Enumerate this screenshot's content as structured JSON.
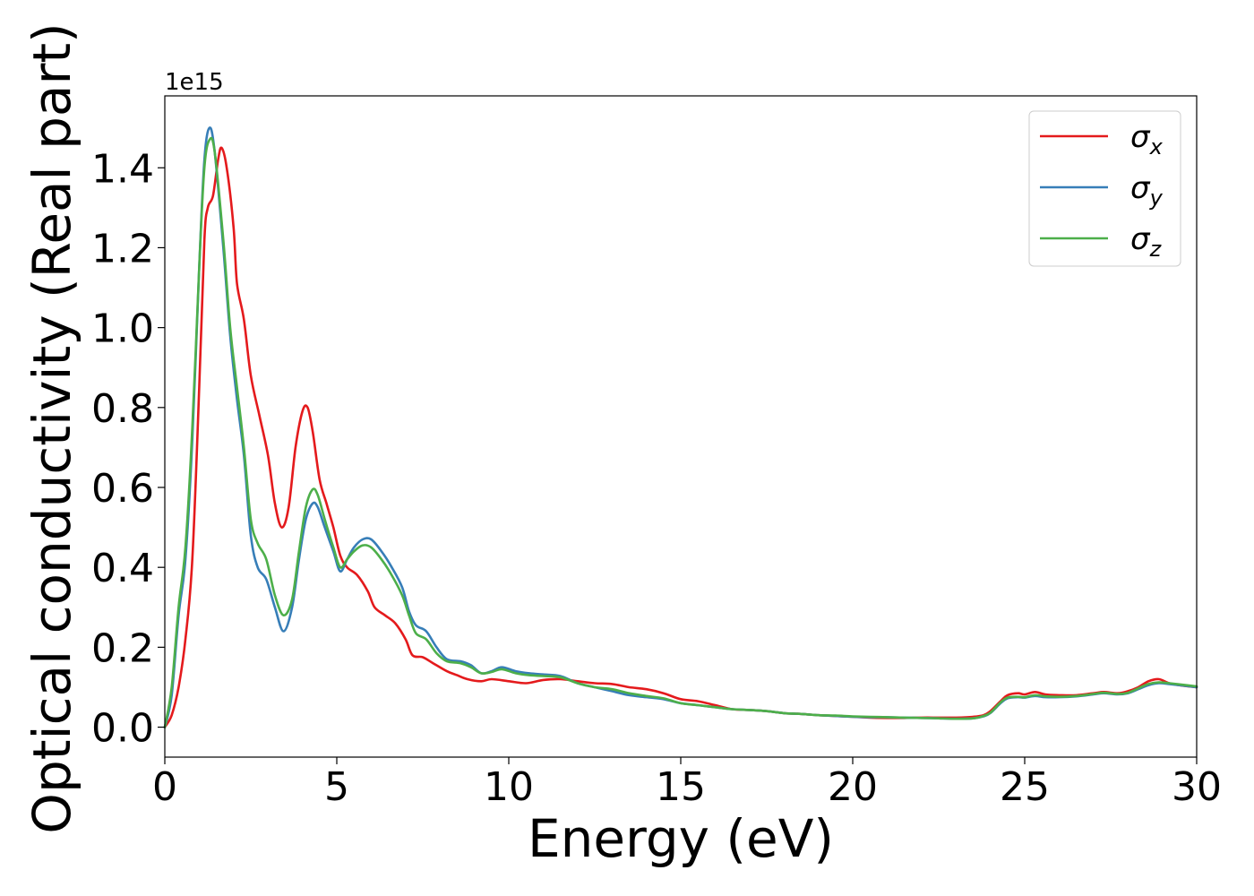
{
  "chart_data": {
    "type": "line",
    "title": "",
    "xlabel": "Energy (eV)",
    "ylabel": "Optical conductivity (Real part)",
    "offset_label": "1e15",
    "xlim": [
      0,
      30
    ],
    "ylim": [
      -0.075,
      1.58
    ],
    "xticks": [
      0,
      5,
      10,
      15,
      20,
      25,
      30
    ],
    "yticks": [
      0.0,
      0.2,
      0.4,
      0.6,
      0.8,
      1.0,
      1.2,
      1.4
    ],
    "xtick_labels": [
      "0",
      "5",
      "10",
      "15",
      "20",
      "25",
      "30"
    ],
    "ytick_labels": [
      "0.0",
      "0.2",
      "0.4",
      "0.6",
      "0.8",
      "1.0",
      "1.2",
      "1.4"
    ],
    "grid": false,
    "legend_position": "top-right",
    "series": [
      {
        "name": "σx",
        "legend_main": "σ",
        "legend_sub": "x",
        "color": "#e41a1c",
        "points": [
          [
            0,
            0.0
          ],
          [
            0.2,
            0.03
          ],
          [
            0.4,
            0.1
          ],
          [
            0.6,
            0.22
          ],
          [
            0.8,
            0.42
          ],
          [
            1.0,
            0.85
          ],
          [
            1.15,
            1.22
          ],
          [
            1.25,
            1.3
          ],
          [
            1.4,
            1.33
          ],
          [
            1.55,
            1.42
          ],
          [
            1.65,
            1.45
          ],
          [
            1.8,
            1.4
          ],
          [
            2.0,
            1.25
          ],
          [
            2.1,
            1.11
          ],
          [
            2.3,
            1.02
          ],
          [
            2.5,
            0.88
          ],
          [
            2.75,
            0.78
          ],
          [
            3.0,
            0.68
          ],
          [
            3.2,
            0.56
          ],
          [
            3.4,
            0.5
          ],
          [
            3.6,
            0.55
          ],
          [
            3.8,
            0.7
          ],
          [
            4.0,
            0.79
          ],
          [
            4.15,
            0.8
          ],
          [
            4.3,
            0.74
          ],
          [
            4.5,
            0.62
          ],
          [
            4.7,
            0.56
          ],
          [
            4.9,
            0.5
          ],
          [
            5.1,
            0.43
          ],
          [
            5.3,
            0.4
          ],
          [
            5.6,
            0.38
          ],
          [
            5.9,
            0.34
          ],
          [
            6.1,
            0.3
          ],
          [
            6.4,
            0.28
          ],
          [
            6.7,
            0.26
          ],
          [
            7.0,
            0.22
          ],
          [
            7.2,
            0.18
          ],
          [
            7.5,
            0.175
          ],
          [
            7.8,
            0.16
          ],
          [
            8.2,
            0.14
          ],
          [
            8.5,
            0.13
          ],
          [
            8.8,
            0.12
          ],
          [
            9.2,
            0.115
          ],
          [
            9.5,
            0.12
          ],
          [
            10.0,
            0.115
          ],
          [
            10.5,
            0.11
          ],
          [
            11.0,
            0.118
          ],
          [
            11.5,
            0.12
          ],
          [
            12.0,
            0.115
          ],
          [
            12.5,
            0.11
          ],
          [
            13.0,
            0.108
          ],
          [
            13.5,
            0.1
          ],
          [
            14.0,
            0.095
          ],
          [
            14.5,
            0.085
          ],
          [
            15.0,
            0.07
          ],
          [
            15.5,
            0.065
          ],
          [
            16.0,
            0.055
          ],
          [
            16.5,
            0.045
          ],
          [
            17.0,
            0.043
          ],
          [
            17.5,
            0.04
          ],
          [
            18.0,
            0.035
          ],
          [
            18.5,
            0.033
          ],
          [
            19.0,
            0.03
          ],
          [
            19.5,
            0.028
          ],
          [
            20.0,
            0.026
          ],
          [
            20.5,
            0.024
          ],
          [
            21.0,
            0.023
          ],
          [
            21.5,
            0.023
          ],
          [
            22.0,
            0.024
          ],
          [
            22.5,
            0.024
          ],
          [
            23.0,
            0.024
          ],
          [
            23.5,
            0.026
          ],
          [
            23.8,
            0.03
          ],
          [
            24.0,
            0.04
          ],
          [
            24.3,
            0.065
          ],
          [
            24.5,
            0.08
          ],
          [
            24.8,
            0.085
          ],
          [
            25.0,
            0.082
          ],
          [
            25.3,
            0.088
          ],
          [
            25.6,
            0.082
          ],
          [
            26.0,
            0.08
          ],
          [
            26.5,
            0.08
          ],
          [
            27.0,
            0.085
          ],
          [
            27.3,
            0.088
          ],
          [
            27.7,
            0.085
          ],
          [
            28.0,
            0.09
          ],
          [
            28.3,
            0.1
          ],
          [
            28.6,
            0.115
          ],
          [
            28.9,
            0.12
          ],
          [
            29.2,
            0.11
          ],
          [
            29.5,
            0.105
          ],
          [
            30.0,
            0.1
          ]
        ]
      },
      {
        "name": "σy",
        "legend_main": "σ",
        "legend_sub": "y",
        "color": "#377eb8",
        "points": [
          [
            0,
            0.0
          ],
          [
            0.2,
            0.08
          ],
          [
            0.4,
            0.28
          ],
          [
            0.6,
            0.42
          ],
          [
            0.8,
            0.72
          ],
          [
            1.0,
            1.15
          ],
          [
            1.15,
            1.42
          ],
          [
            1.3,
            1.5
          ],
          [
            1.45,
            1.44
          ],
          [
            1.7,
            1.2
          ],
          [
            1.9,
            0.98
          ],
          [
            2.1,
            0.82
          ],
          [
            2.3,
            0.68
          ],
          [
            2.5,
            0.48
          ],
          [
            2.7,
            0.4
          ],
          [
            2.95,
            0.37
          ],
          [
            3.2,
            0.3
          ],
          [
            3.45,
            0.24
          ],
          [
            3.7,
            0.3
          ],
          [
            3.9,
            0.42
          ],
          [
            4.1,
            0.52
          ],
          [
            4.3,
            0.56
          ],
          [
            4.45,
            0.55
          ],
          [
            4.65,
            0.5
          ],
          [
            4.9,
            0.44
          ],
          [
            5.1,
            0.39
          ],
          [
            5.3,
            0.42
          ],
          [
            5.5,
            0.45
          ],
          [
            5.75,
            0.47
          ],
          [
            6.0,
            0.47
          ],
          [
            6.3,
            0.44
          ],
          [
            6.6,
            0.4
          ],
          [
            6.9,
            0.35
          ],
          [
            7.1,
            0.29
          ],
          [
            7.3,
            0.255
          ],
          [
            7.6,
            0.24
          ],
          [
            7.9,
            0.2
          ],
          [
            8.2,
            0.17
          ],
          [
            8.6,
            0.165
          ],
          [
            8.9,
            0.155
          ],
          [
            9.2,
            0.135
          ],
          [
            9.5,
            0.14
          ],
          [
            9.8,
            0.15
          ],
          [
            10.2,
            0.14
          ],
          [
            10.6,
            0.135
          ],
          [
            11.0,
            0.132
          ],
          [
            11.5,
            0.128
          ],
          [
            12.0,
            0.11
          ],
          [
            12.5,
            0.1
          ],
          [
            13.0,
            0.09
          ],
          [
            13.5,
            0.08
          ],
          [
            14.0,
            0.075
          ],
          [
            14.5,
            0.07
          ],
          [
            15.0,
            0.06
          ],
          [
            15.5,
            0.055
          ],
          [
            16.0,
            0.05
          ],
          [
            16.5,
            0.045
          ],
          [
            17.0,
            0.043
          ],
          [
            17.5,
            0.04
          ],
          [
            18.0,
            0.035
          ],
          [
            18.5,
            0.033
          ],
          [
            19.0,
            0.03
          ],
          [
            19.5,
            0.028
          ],
          [
            20.0,
            0.026
          ],
          [
            20.5,
            0.025
          ],
          [
            21.0,
            0.025
          ],
          [
            21.5,
            0.024
          ],
          [
            22.0,
            0.023
          ],
          [
            22.5,
            0.022
          ],
          [
            23.0,
            0.021
          ],
          [
            23.5,
            0.022
          ],
          [
            23.8,
            0.027
          ],
          [
            24.0,
            0.035
          ],
          [
            24.3,
            0.06
          ],
          [
            24.5,
            0.072
          ],
          [
            24.8,
            0.075
          ],
          [
            25.0,
            0.074
          ],
          [
            25.3,
            0.078
          ],
          [
            25.6,
            0.075
          ],
          [
            26.0,
            0.075
          ],
          [
            26.5,
            0.077
          ],
          [
            27.0,
            0.082
          ],
          [
            27.3,
            0.085
          ],
          [
            27.7,
            0.082
          ],
          [
            28.0,
            0.085
          ],
          [
            28.3,
            0.095
          ],
          [
            28.6,
            0.105
          ],
          [
            28.9,
            0.11
          ],
          [
            29.2,
            0.108
          ],
          [
            29.5,
            0.105
          ],
          [
            30.0,
            0.1
          ]
        ]
      },
      {
        "name": "σz",
        "legend_main": "σ",
        "legend_sub": "z",
        "color": "#4daf4a",
        "points": [
          [
            0,
            0.0
          ],
          [
            0.2,
            0.1
          ],
          [
            0.4,
            0.3
          ],
          [
            0.6,
            0.45
          ],
          [
            0.8,
            0.75
          ],
          [
            1.0,
            1.15
          ],
          [
            1.15,
            1.4
          ],
          [
            1.3,
            1.47
          ],
          [
            1.45,
            1.44
          ],
          [
            1.7,
            1.22
          ],
          [
            1.9,
            1.0
          ],
          [
            2.1,
            0.85
          ],
          [
            2.3,
            0.7
          ],
          [
            2.5,
            0.52
          ],
          [
            2.7,
            0.46
          ],
          [
            2.95,
            0.42
          ],
          [
            3.2,
            0.33
          ],
          [
            3.45,
            0.28
          ],
          [
            3.7,
            0.32
          ],
          [
            3.9,
            0.44
          ],
          [
            4.1,
            0.55
          ],
          [
            4.3,
            0.595
          ],
          [
            4.45,
            0.58
          ],
          [
            4.65,
            0.52
          ],
          [
            4.9,
            0.45
          ],
          [
            5.1,
            0.4
          ],
          [
            5.3,
            0.42
          ],
          [
            5.5,
            0.44
          ],
          [
            5.75,
            0.455
          ],
          [
            6.0,
            0.45
          ],
          [
            6.3,
            0.42
          ],
          [
            6.6,
            0.38
          ],
          [
            6.9,
            0.33
          ],
          [
            7.1,
            0.28
          ],
          [
            7.3,
            0.235
          ],
          [
            7.6,
            0.22
          ],
          [
            7.9,
            0.185
          ],
          [
            8.2,
            0.165
          ],
          [
            8.6,
            0.16
          ],
          [
            8.9,
            0.15
          ],
          [
            9.2,
            0.135
          ],
          [
            9.5,
            0.138
          ],
          [
            9.8,
            0.145
          ],
          [
            10.2,
            0.135
          ],
          [
            10.6,
            0.13
          ],
          [
            11.0,
            0.128
          ],
          [
            11.5,
            0.125
          ],
          [
            12.0,
            0.11
          ],
          [
            12.5,
            0.1
          ],
          [
            13.0,
            0.095
          ],
          [
            13.5,
            0.085
          ],
          [
            14.0,
            0.078
          ],
          [
            14.5,
            0.072
          ],
          [
            15.0,
            0.06
          ],
          [
            15.5,
            0.055
          ],
          [
            16.0,
            0.05
          ],
          [
            16.5,
            0.045
          ],
          [
            17.0,
            0.043
          ],
          [
            17.5,
            0.04
          ],
          [
            18.0,
            0.035
          ],
          [
            18.5,
            0.033
          ],
          [
            19.0,
            0.03
          ],
          [
            19.5,
            0.029
          ],
          [
            20.0,
            0.027
          ],
          [
            20.5,
            0.026
          ],
          [
            21.0,
            0.025
          ],
          [
            21.5,
            0.024
          ],
          [
            22.0,
            0.023
          ],
          [
            22.5,
            0.022
          ],
          [
            23.0,
            0.021
          ],
          [
            23.5,
            0.022
          ],
          [
            23.8,
            0.028
          ],
          [
            24.0,
            0.036
          ],
          [
            24.3,
            0.062
          ],
          [
            24.5,
            0.074
          ],
          [
            24.8,
            0.076
          ],
          [
            25.0,
            0.075
          ],
          [
            25.3,
            0.08
          ],
          [
            25.6,
            0.077
          ],
          [
            26.0,
            0.076
          ],
          [
            26.5,
            0.078
          ],
          [
            27.0,
            0.083
          ],
          [
            27.3,
            0.086
          ],
          [
            27.7,
            0.083
          ],
          [
            28.0,
            0.086
          ],
          [
            28.3,
            0.097
          ],
          [
            28.6,
            0.108
          ],
          [
            28.9,
            0.112
          ],
          [
            29.2,
            0.11
          ],
          [
            29.5,
            0.107
          ],
          [
            30.0,
            0.102
          ]
        ]
      }
    ]
  }
}
